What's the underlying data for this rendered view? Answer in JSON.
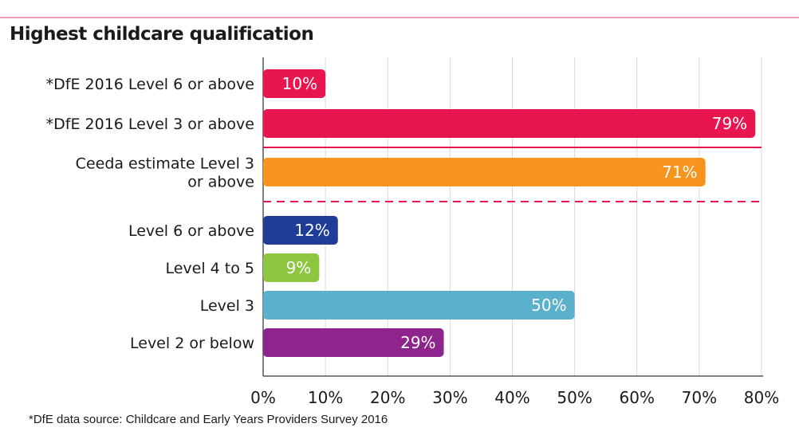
{
  "chart_data": {
    "type": "bar",
    "orientation": "horizontal",
    "title": "Highest childcare qualification",
    "categories": [
      [
        "*DfE 2016 Level 6 or above"
      ],
      [
        "*DfE 2016 Level 3 or above"
      ],
      [
        "Ceeda estimate Level 3",
        "or above"
      ],
      [
        "Level 6 or above"
      ],
      [
        "Level 4 to 5"
      ],
      [
        "Level 3"
      ],
      [
        "Level 2 or below"
      ]
    ],
    "values": [
      10,
      79,
      71,
      12,
      9,
      50,
      29
    ],
    "value_labels": [
      "10%",
      "79%",
      "71%",
      "12%",
      "9%",
      "50%",
      "29%"
    ],
    "bar_colors": [
      "#e8154f",
      "#e8154f",
      "#f7941d",
      "#1f3c96",
      "#8dc63f",
      "#5bb0cc",
      "#8e258d"
    ],
    "xlim": [
      0,
      80
    ],
    "xticks": [
      "0%",
      "10%",
      "20%",
      "30%",
      "40%",
      "50%",
      "60%",
      "70%",
      "80%"
    ],
    "grid": "vertical",
    "separators": [
      {
        "after_index": 1,
        "style": "solid",
        "color": "#e8154f"
      },
      {
        "after_index": 2,
        "style": "dashed",
        "color": "#e8154f"
      }
    ],
    "footnote": "*DfE data source: Childcare and Early Years Providers Survey 2016"
  }
}
